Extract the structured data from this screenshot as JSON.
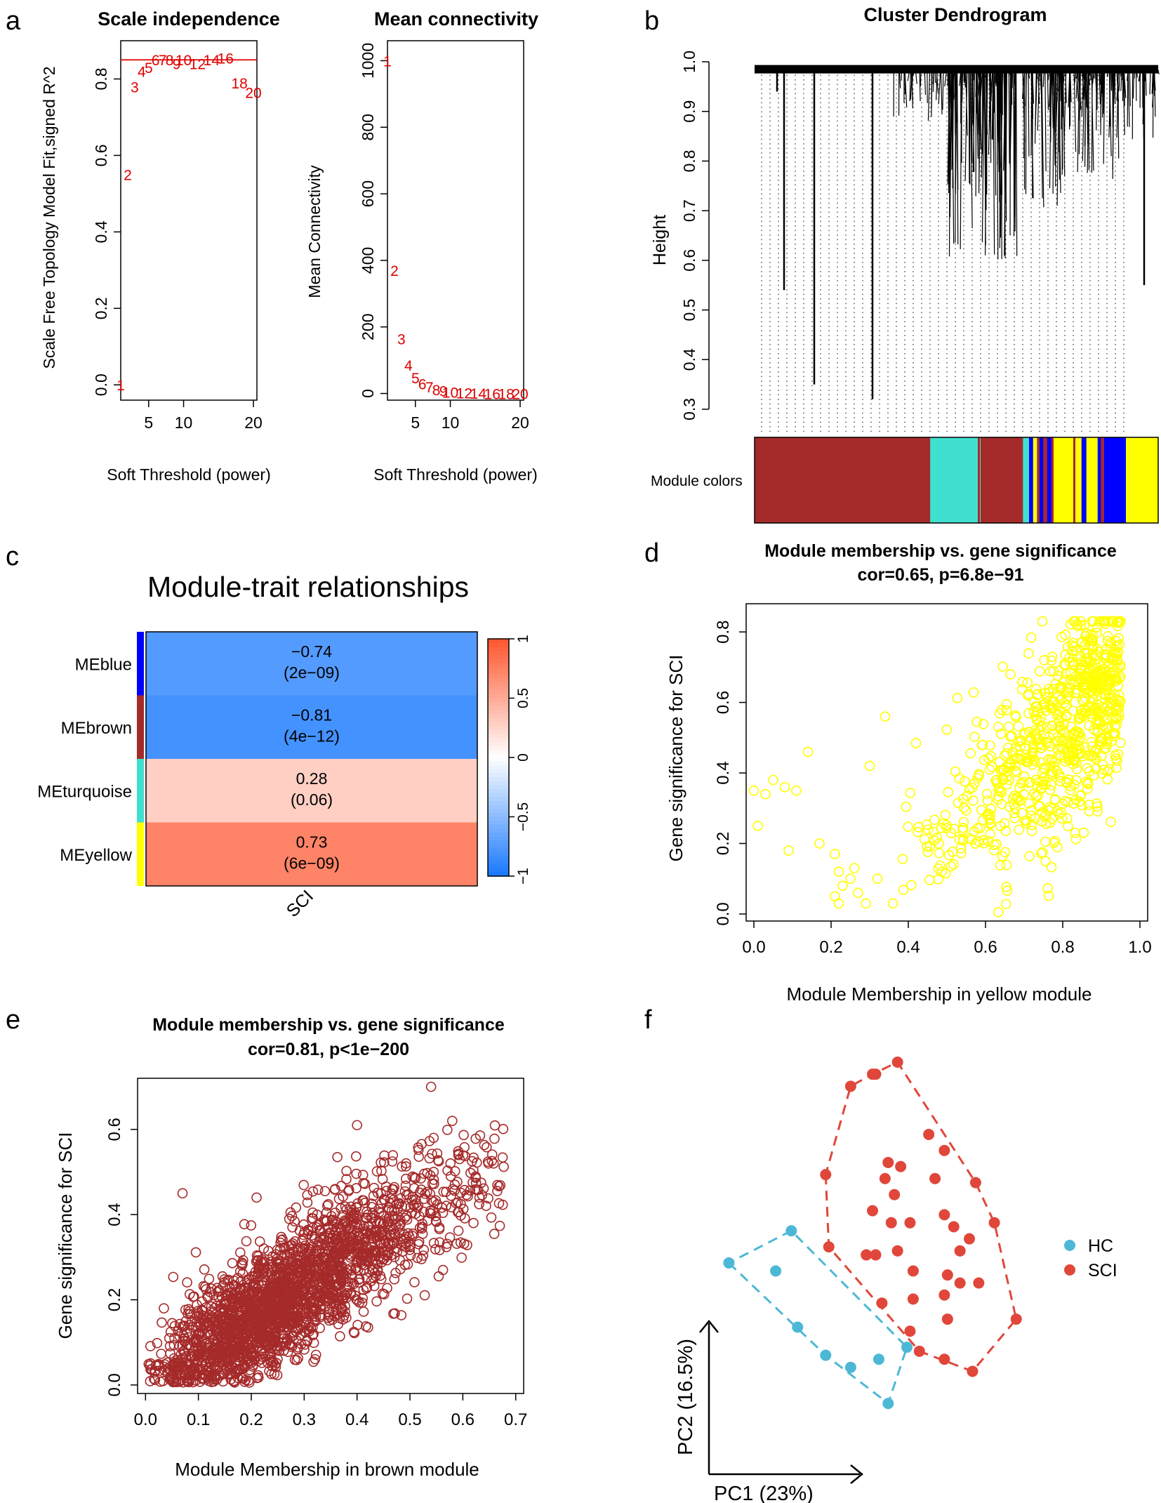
{
  "panel_letters": [
    "a",
    "b",
    "c",
    "d",
    "e",
    "f"
  ],
  "colors": {
    "red_label": "#e00000",
    "dendro_brown": "#a52a2a",
    "dendro_turquoise": "#40e0d0",
    "dendro_yellow": "#ffff00",
    "dendro_blue": "#0000ff",
    "hc": "#4db8d6",
    "sci": "#e0473a"
  },
  "chart_data": [
    {
      "id": "scale_independence",
      "type": "scatter",
      "title": "Scale independence",
      "xlabel": "Soft Threshold (power)",
      "ylabel": "Scale Free Topology Model Fit,signed R^2",
      "xlim": [
        1,
        20.5
      ],
      "ylim": [
        -0.04,
        0.9
      ],
      "xticks": [
        5,
        10,
        20
      ],
      "yticks": [
        0.0,
        0.2,
        0.4,
        0.6,
        0.8
      ],
      "hline": 0.85,
      "points": [
        {
          "x": 1,
          "y": 0.0,
          "label": "1"
        },
        {
          "x": 2,
          "y": 0.55,
          "label": "2"
        },
        {
          "x": 3,
          "y": 0.78,
          "label": "3"
        },
        {
          "x": 4,
          "y": 0.82,
          "label": "4"
        },
        {
          "x": 5,
          "y": 0.83,
          "label": "5"
        },
        {
          "x": 6,
          "y": 0.85,
          "label": "6"
        },
        {
          "x": 7,
          "y": 0.85,
          "label": "7"
        },
        {
          "x": 8,
          "y": 0.85,
          "label": "8"
        },
        {
          "x": 9,
          "y": 0.84,
          "label": "9"
        },
        {
          "x": 10,
          "y": 0.85,
          "label": "10"
        },
        {
          "x": 12,
          "y": 0.84,
          "label": "12"
        },
        {
          "x": 14,
          "y": 0.85,
          "label": "14"
        },
        {
          "x": 16,
          "y": 0.855,
          "label": "16"
        },
        {
          "x": 18,
          "y": 0.79,
          "label": "18"
        },
        {
          "x": 20,
          "y": 0.765,
          "label": "20"
        }
      ]
    },
    {
      "id": "mean_connectivity",
      "type": "scatter",
      "title": "Mean connectivity",
      "xlabel": "Soft Threshold (power)",
      "ylabel": "Mean Connectivity",
      "xlim": [
        1,
        20.5
      ],
      "ylim": [
        -20,
        1060
      ],
      "xticks": [
        5,
        10,
        20
      ],
      "yticks": [
        0,
        200,
        400,
        600,
        800,
        1000
      ],
      "points": [
        {
          "x": 1,
          "y": 1000,
          "label": "1"
        },
        {
          "x": 2,
          "y": 370,
          "label": "2"
        },
        {
          "x": 3,
          "y": 165,
          "label": "3"
        },
        {
          "x": 4,
          "y": 85,
          "label": "4"
        },
        {
          "x": 5,
          "y": 48,
          "label": "5"
        },
        {
          "x": 6,
          "y": 30,
          "label": "6"
        },
        {
          "x": 7,
          "y": 20,
          "label": "7"
        },
        {
          "x": 8,
          "y": 12,
          "label": "8"
        },
        {
          "x": 9,
          "y": 8,
          "label": "9"
        },
        {
          "x": 10,
          "y": 4,
          "label": "10"
        },
        {
          "x": 12,
          "y": 2,
          "label": "12"
        },
        {
          "x": 14,
          "y": 1,
          "label": "14"
        },
        {
          "x": 16,
          "y": 0,
          "label": "16"
        },
        {
          "x": 18,
          "y": 0,
          "label": "18"
        },
        {
          "x": 20,
          "y": 0,
          "label": "20"
        }
      ]
    },
    {
      "id": "cluster_dendrogram",
      "type": "dendrogram",
      "title": "Cluster Dendrogram",
      "ylabel": "Height",
      "ylim": [
        0.29,
        1.0
      ],
      "yticks": [
        0.3,
        0.4,
        0.5,
        0.6,
        0.7,
        0.8,
        0.9,
        1.0
      ],
      "colorbar_label": "Module colors",
      "module_segments": [
        {
          "module": "brown",
          "from": 0.0,
          "to": 0.435
        },
        {
          "module": "turquoise",
          "from": 0.435,
          "to": 0.56
        },
        {
          "module": "brown",
          "from": 0.56,
          "to": 0.665
        },
        {
          "module": "turquoise",
          "from": 0.665,
          "to": 0.68
        },
        {
          "module": "blue",
          "from": 0.68,
          "to": 0.69
        },
        {
          "module": "yellow",
          "from": 0.69,
          "to": 0.7
        },
        {
          "module": "blue",
          "from": 0.7,
          "to": 0.715
        },
        {
          "module": "brown",
          "from": 0.715,
          "to": 0.725
        },
        {
          "module": "blue",
          "from": 0.725,
          "to": 0.74
        },
        {
          "module": "yellow",
          "from": 0.74,
          "to": 0.81
        },
        {
          "module": "blue",
          "from": 0.81,
          "to": 0.822
        },
        {
          "module": "yellow",
          "from": 0.822,
          "to": 0.85
        },
        {
          "module": "blue",
          "from": 0.85,
          "to": 0.858
        },
        {
          "module": "brown",
          "from": 0.858,
          "to": 0.866
        },
        {
          "module": "blue",
          "from": 0.866,
          "to": 0.92
        },
        {
          "module": "yellow",
          "from": 0.92,
          "to": 1.0
        }
      ]
    },
    {
      "id": "module_trait",
      "type": "heatmap",
      "title": "Module-trait relationships",
      "rows": [
        "MEblue",
        "MEbrown",
        "MEturquoise",
        "MEyellow"
      ],
      "row_colors": [
        "#0000ff",
        "#a52a2a",
        "#40e0d0",
        "#ffff00"
      ],
      "columns": [
        "SCI"
      ],
      "correlations": [
        -0.74,
        -0.81,
        0.28,
        0.73
      ],
      "pvalues": [
        "(2e-09)",
        "(4e-12)",
        "(0.06)",
        "(6e-09)"
      ],
      "value_labels": [
        "-0.74",
        "-0.81",
        "0.28",
        "0.73"
      ],
      "colorbar_ticks": [
        "1",
        "0.5",
        "0",
        "-0.5",
        "-1"
      ],
      "colorbar_range": [
        -1,
        1
      ]
    },
    {
      "id": "yellow_module",
      "type": "scatter",
      "title": "Module membership vs. gene significance",
      "subtitle": "cor=0.65, p=6.8e−91",
      "xlabel": "Module Membership in yellow module",
      "ylabel": "Gene significance for SCI",
      "xlim": [
        -0.02,
        1.02
      ],
      "ylim": [
        -0.02,
        0.88
      ],
      "xticks": [
        "0.0",
        "0.2",
        "0.4",
        "0.6",
        "0.8",
        "1.0"
      ],
      "yticks": [
        "0.0",
        "0.2",
        "0.4",
        "0.6",
        "0.8"
      ],
      "color": "#ffff00",
      "n_points": 780,
      "cor": 0.65
    },
    {
      "id": "brown_module",
      "type": "scatter",
      "title": "Module membership vs. gene significance",
      "subtitle": "cor=0.81, p<1e−200",
      "xlabel": "Module Membership in brown module",
      "ylabel": "Gene significance for SCI",
      "xlim": [
        -0.015,
        0.715
      ],
      "ylim": [
        -0.02,
        0.72
      ],
      "xticks": [
        "0.0",
        "0.1",
        "0.2",
        "0.3",
        "0.4",
        "0.5",
        "0.6",
        "0.7"
      ],
      "yticks": [
        "0.0",
        "0.2",
        "0.4",
        "0.6"
      ],
      "color": "#a52a2a",
      "n_points": 2300,
      "cor": 0.81
    },
    {
      "id": "pca",
      "type": "scatter",
      "xlabel": "PC1 (23%)",
      "ylabel": "PC2 (16.5%)",
      "legend": [
        {
          "name": "HC",
          "color": "#4db8d6"
        },
        {
          "name": "SCI",
          "color": "#e0473a"
        }
      ],
      "xlim": [
        0,
        100
      ],
      "ylim": [
        0,
        100
      ],
      "series": [
        {
          "name": "HC",
          "points": [
            [
              3,
              50
            ],
            [
              18,
              48
            ],
            [
              23,
              58
            ],
            [
              25,
              34
            ],
            [
              34,
              27
            ],
            [
              42,
              24
            ],
            [
              51,
              26
            ],
            [
              54,
              15
            ],
            [
              60,
              29
            ]
          ]
        },
        {
          "name": "SCI",
          "points": [
            [
              42,
              94
            ],
            [
              49,
              97
            ],
            [
              50,
              97
            ],
            [
              57,
              100
            ],
            [
              34,
              72
            ],
            [
              35,
              54
            ],
            [
              49,
              63
            ],
            [
              47,
              52
            ],
            [
              50,
              52
            ],
            [
              52,
              40
            ],
            [
              53,
              71
            ],
            [
              55,
              60
            ],
            [
              56,
              67
            ],
            [
              57,
              53
            ],
            [
              54,
              75
            ],
            [
              58,
              74
            ],
            [
              62,
              41
            ],
            [
              62,
              48
            ],
            [
              61,
              60
            ],
            [
              67,
              82
            ],
            [
              69,
              71
            ],
            [
              72,
              78
            ],
            [
              72,
              62
            ],
            [
              73,
              47
            ],
            [
              72,
              42
            ],
            [
              73,
              36
            ],
            [
              75,
              59
            ],
            [
              77,
              53
            ],
            [
              77,
              45
            ],
            [
              80,
              56
            ],
            [
              82,
              70
            ],
            [
              64,
              28
            ],
            [
              72,
              26
            ],
            [
              81,
              23
            ],
            [
              61,
              33
            ],
            [
              83,
              45
            ],
            [
              88,
              60
            ],
            [
              95,
              36
            ]
          ]
        }
      ]
    }
  ]
}
